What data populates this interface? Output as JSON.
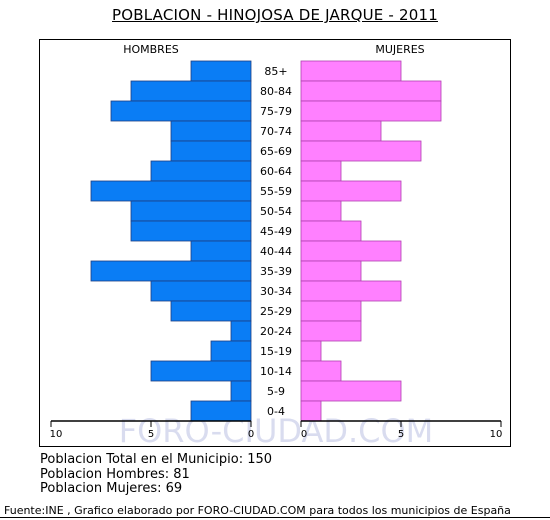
{
  "header": {
    "title": "POBLACION - HINOJOSA DE JARQUE - 2011"
  },
  "chart_data": {
    "type": "bar",
    "orientation": "horizontal",
    "subtype": "population-pyramid",
    "categories": [
      "85+",
      "80-84",
      "75-79",
      "70-74",
      "65-69",
      "60-64",
      "55-59",
      "50-54",
      "45-49",
      "40-44",
      "35-39",
      "30-34",
      "25-29",
      "20-24",
      "15-19",
      "10-14",
      "5-9",
      "0-4"
    ],
    "series": [
      {
        "name": "HOMBRES",
        "color": "#0a7df5",
        "values": [
          3,
          6,
          7,
          4,
          4,
          5,
          8,
          6,
          6,
          3,
          8,
          5,
          4,
          1,
          2,
          5,
          1,
          3
        ]
      },
      {
        "name": "MUJERES",
        "color": "#ff80ff",
        "values": [
          5,
          7,
          7,
          4,
          6,
          2,
          5,
          2,
          3,
          5,
          3,
          5,
          3,
          3,
          1,
          2,
          5,
          1
        ]
      }
    ],
    "xlim": [
      0,
      10
    ],
    "ticks": {
      "left": [
        "10",
        "5",
        "0"
      ],
      "right": [
        "0",
        "5",
        "10"
      ]
    },
    "watermark": "FORO-CIUDAD.COM"
  },
  "stats": {
    "total": "Poblacion Total en el Municipio: 150",
    "men": "Poblacion Hombres: 81",
    "women": "Poblacion Mujeres: 69"
  },
  "footer": {
    "source": "Fuente:INE , Grafico elaborado por FORO-CIUDAD.COM para todos los municipios de España"
  }
}
